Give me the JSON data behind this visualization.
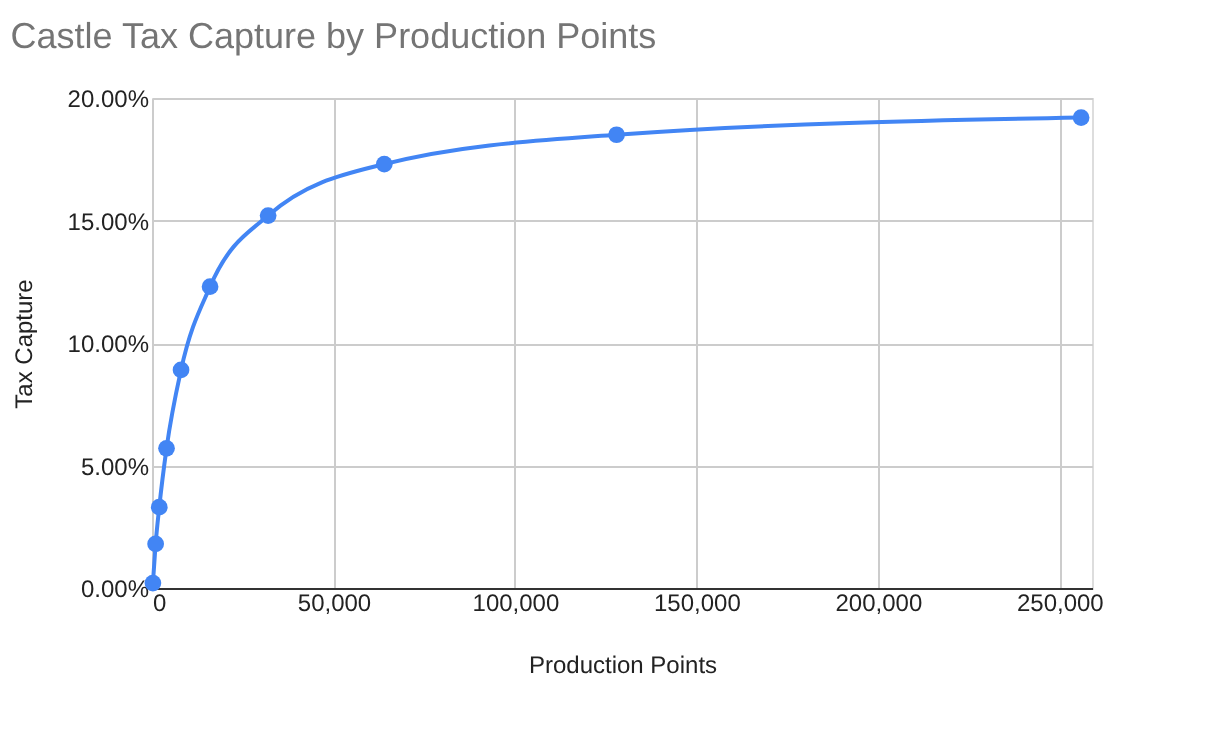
{
  "chart_data": {
    "type": "line",
    "title": "Castle Tax Capture by Production Points",
    "xlabel": "Production Points",
    "ylabel": "Tax Capture",
    "x": [
      250,
      1000,
      2000,
      4000,
      8000,
      16000,
      32000,
      64000,
      128000,
      256000
    ],
    "series": [
      {
        "color": "#4285f4",
        "values": [
          0.2,
          1.8,
          3.3,
          5.7,
          8.9,
          12.3,
          15.2,
          17.3,
          18.5,
          19.2
        ]
      }
    ],
    "xlim": [
      0,
      259000
    ],
    "xticks": [
      {
        "value": 0,
        "label": "0"
      },
      {
        "value": 50000,
        "label": "50,000"
      },
      {
        "value": 100000,
        "label": "100,000"
      },
      {
        "value": 150000,
        "label": "150,000"
      },
      {
        "value": 200000,
        "label": "200,000"
      },
      {
        "value": 250000,
        "label": "250,000"
      }
    ],
    "ylim": [
      0,
      20
    ],
    "yticks": [
      {
        "value": 0,
        "label": "0.00%"
      },
      {
        "value": 5,
        "label": "5.00%"
      },
      {
        "value": 10,
        "label": "10.00%"
      },
      {
        "value": 15,
        "label": "15.00%"
      },
      {
        "value": 20,
        "label": "20.00%"
      }
    ],
    "grid": true,
    "marker": "circle",
    "line_style": "solid"
  }
}
